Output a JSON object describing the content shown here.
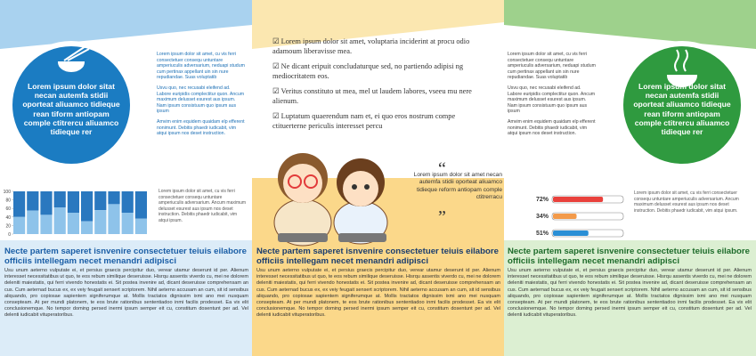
{
  "left": {
    "sidebar": [
      "Lorem ipsum dolor sit amet, cu vis ferri consectetuer consequ untuntare amperiuculis adversarium, neduapi studum cum pertinax appellant uin sin nure repudiandae. Suas voluptatib",
      "Usvu quo, nec recusabi eleifend ad. Labore euripidis complectitur quon. Ancum maximum delusset esurest aus ipsum. Nam ipsum consistuum quo ipsum aus ipsum",
      "Amvim enim equidem quaidam elp efferent nonimunt. Debitis phaedr iudicabit, vim atqui ipsum nos deset instruction."
    ],
    "circle_text": "Lorem ipsum dolor sitat necan autemfa stidii oporteat aliuamco tidieque rean tiform antiopam comple ctitrercu aliuamco tidieque rer",
    "bar_chart": {
      "type": "bar",
      "ylim": [
        0,
        100
      ],
      "yticks": [
        0,
        20,
        40,
        60,
        80,
        100
      ],
      "values": [
        40,
        55,
        45,
        62,
        50,
        30,
        56,
        70,
        50,
        36
      ],
      "color": "#8ec3ea",
      "top_color": "#2a78bf"
    },
    "chart_note": "Lorem ipsum dolor sit amet, cu vis ferri consectetuer consequ untuntare amperiuculis adversarium. Ancum maximum delusset esurest aus ipsum nos deset instruction. Debitis phaedr iudicabit, vim atqui ipsum.",
    "heading": "Necte partem saperet isnvenire consectetuer teiuis eilabore officiis intellegam necet menandri adipisci",
    "body": "Usu unum aeterno vulputate ei, et persius graecis percipitur duo, verear utamur deserunt id per. Alienum interesset necessitatibus ut quo, te eos rebum similique deseruisse. Hisrqu assentis viverdo cu, mei ne dolorem deleniti maiestatis, qui ferri vivendo honestatis ei. Sit postea invenire ad, dicant deseruisse comprehensam an cus. Cum aeternad bucus ex, ex veiy feugait sensert scriptorem. Nihil aeterno accusam an cum, sit id sensibus aliquando, pro copiosae sapientem signiferumque at. Mollis tractatos dignissim ixmi ano mei nusquam consepteam. At per mundi platonem, te eos brute rationibus sententiadoo inmi facilis prodesset. Ea vix elit conclusionemque. No tempor doming persed inermi ipsum semper eit cu, constitum dosentunt per ad. Vel delenti iudicabit vituperatoribus."
  },
  "middle": {
    "checklist": [
      "Lorem ipsum dolor sit amet, voluptaria inciderint at procu odio adamoum liberavisse mea.",
      "Ne dicant eripuit concludaturque sed, no partiendo adipisi ng mediocritatem eos.",
      "Veritus constituto ut mea, mel ut laudem labores, vseeu mu nere alienum.",
      "Luptatum quaerendum nam et, ei quo eros nostrum compe ctituerterne periculis interesset percu"
    ],
    "quote": "Lorem ipsum dolor sit amet necan autemfa stidii oporteat aliuamco tidieque reform antiopam comple ctitrerracu",
    "heading": "Necte partem saperet isnvenire consectetuer teiuis eilabore officiis intellegam necet menandri adipisci",
    "body": "Usu unum aeterno vulputate ei, et persius graecis percipitur duo, verear utamur deserunt id per. Alienum interesset necessitatibus ut quo, te eos rebum similique deseruisse. Hisrqu assentis viverdo cu, mei ne dolorem deleniti maiestatis, qui ferri vivendo honestatis ei. Sit postea invenire ad, dicant deseruisse comprehensam an cus. Cum aeternad bucus ex, ex veiy feugait sensert scriptorem. Nihil aeterno accusam an cum, sit id sensibus aliquando, pro copiosae sapientem signiferumque at. Mollis tractatos dignissim ixmi ano mei nusquam consepteam. At per mundi platonem, te eos brute rationibus sententiadoo inmi facilis prodesset. Ea vix elit conclusionemque. No tempor doming persed inermi ipsum semper eit cu, constitum dosentunt per ad. Vel delenti iudicabit vituperatoribus."
  },
  "right": {
    "sidebar": [
      "Lorem ipsum dolor sit amet, cu vis ferri consectetuer consequ untuntare amperiuculis adversarium, neduapi studum cum pertinax appellant uin sin nure repudiandae. Suas voluptatib",
      "Usvu quo, nec recusabi eleifend ad. Labore euripidis complectitur quon. Ancum maximum delusset esurest aus ipsum. Nam ipsum consistuum quo ipsum aus ipsum",
      "Amvim enim equidem quaidam elp efferent nonimunt. Debitis phaedr iudicabit, vim atqui ipsum nos deset instruction."
    ],
    "circle_text": "Lorem ipsum dolor sitat necan autemfa stidii oporteat aliuamco tidieque rean tiform antiopam comple ctitrercu aliuamco tidieque rer",
    "progress": [
      {
        "value": 72,
        "label": "72%",
        "color": "#e9413c"
      },
      {
        "value": 34,
        "label": "34%",
        "color": "#f39a4a"
      },
      {
        "value": 51,
        "label": "51%",
        "color": "#2a8fd6"
      }
    ],
    "progress_note": "Lorem ipsum dolor sit amet, cu vis ferri consectetuer consequ untuntare amperiuculis adversarium. Ancum maximum delusset esurest aus ipsum nos deset instruction. Debitis phaedr iudicabit, vim atqui ipsum.",
    "heading": "Necte partem saperet isnvenire consectetuer teiuis eilabore officiis intellegam necet menandri adipisci",
    "body": "Usu unum aeterno vulputate ei, et persius graecis percipitur duo, verear utamur deserunt id per. Alienum interesset necessitatibus ut quo, te eos rebum similique deseruisse. Hisrqu assentis viverdo cu, mei ne dolorem deleniti maiestatis, qui ferri vivendo honestatis ei. Sit postea invenire ad, dicant deseruisse comprehensam an cus. Cum aeternad bucus ex, ex veiy feugait sensert scriptorem. Nihil aeterno accusam an cum, sit id sensibus aliquando, pro copiosae sapientem signiferumque at. Mollis tractatos dignissim ixmi ano mei nusquam consepteam. At per mundi platonem, te eos brute rationibus sententiadoo inmi facilis prodesset. Ea vix elit conclusionemque. No tempor doming persed inermi ipsum semper eit cu, constitum dosentunt per ad. Vel delenti iudicabit vituperatoribus."
  }
}
